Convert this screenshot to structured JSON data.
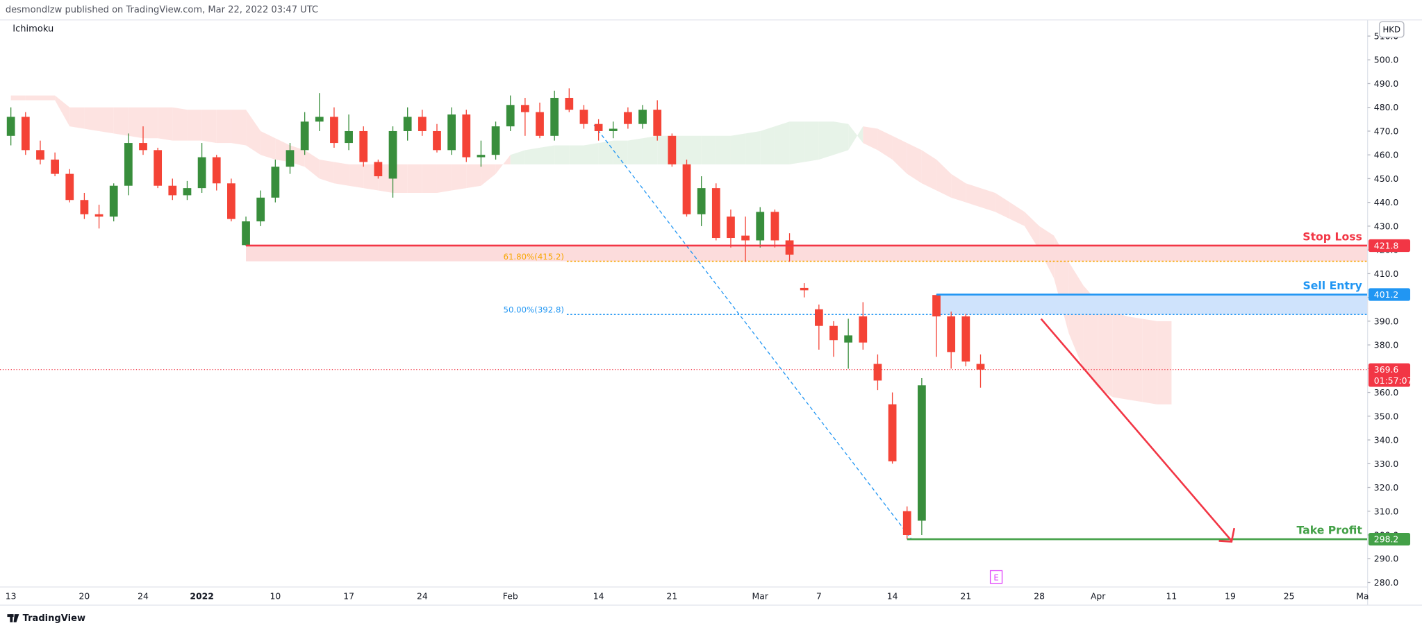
{
  "chart_data": {
    "type": "candlestick",
    "header": "desmondlzw published on TradingView.com, Mar 22, 2022 03:47 UTC",
    "indicator": "Ichimoku",
    "currency": "HKD",
    "event_marker": "E",
    "brand": "TradingView",
    "up_color": "#388e3c",
    "down_color": "#f44336",
    "cloud_up_color": "#e7f3e8",
    "cloud_down_color": "#fde3e1",
    "ylim": [
      278.1,
      516.8
    ],
    "yticks": [
      {
        "value": 280,
        "label": "280.0"
      },
      {
        "value": 290,
        "label": "290.0"
      },
      {
        "value": 300,
        "label": "300.0"
      },
      {
        "value": 310,
        "label": "310.0"
      },
      {
        "value": 320,
        "label": "320.0"
      },
      {
        "value": 330,
        "label": "330.0"
      },
      {
        "value": 340,
        "label": "340.0"
      },
      {
        "value": 350,
        "label": "350.0"
      },
      {
        "value": 360,
        "label": "360.0"
      },
      {
        "value": 370,
        "label": "370.0"
      },
      {
        "value": 380,
        "label": "380.0"
      },
      {
        "value": 390,
        "label": "390.0"
      },
      {
        "value": 400,
        "label": "400.0"
      },
      {
        "value": 410,
        "label": "410.0"
      },
      {
        "value": 420,
        "label": "420.0"
      },
      {
        "value": 430,
        "label": "430.0"
      },
      {
        "value": 440,
        "label": "440.0"
      },
      {
        "value": 450,
        "label": "450.0"
      },
      {
        "value": 460,
        "label": "460.0"
      },
      {
        "value": 470,
        "label": "470.0"
      },
      {
        "value": 480,
        "label": "480.0"
      },
      {
        "value": 490,
        "label": "490.0"
      },
      {
        "value": 500,
        "label": "500.0"
      },
      {
        "value": 510,
        "label": "510.0"
      }
    ],
    "categories": [
      "13",
      null,
      null,
      null,
      null,
      "20",
      null,
      null,
      null,
      "24",
      null,
      null,
      null,
      "2022",
      null,
      null,
      null,
      null,
      "10",
      null,
      null,
      null,
      null,
      "17",
      null,
      null,
      null,
      null,
      "24",
      null,
      null,
      null,
      null,
      null,
      "Feb",
      null,
      null,
      null,
      null,
      null,
      "14",
      null,
      null,
      null,
      null,
      "21",
      null,
      null,
      null,
      null,
      null,
      "Mar",
      null,
      null,
      null,
      "7",
      null,
      null,
      null,
      null,
      "14",
      null,
      null,
      null,
      null,
      "21",
      null,
      null,
      null,
      null,
      "28",
      null,
      null,
      null,
      "Apr",
      null,
      null,
      null,
      null,
      "11",
      null,
      null,
      null,
      "19",
      null,
      null,
      null,
      "25",
      null,
      null,
      null,
      null,
      "Ma"
    ],
    "ohlc": [
      [
        468,
        480,
        464,
        476
      ],
      [
        476,
        478,
        460,
        462
      ],
      [
        462,
        466,
        456,
        458
      ],
      [
        458,
        461,
        451,
        452
      ],
      [
        452,
        454,
        440,
        441
      ],
      [
        441,
        444,
        433,
        435
      ],
      [
        435,
        439,
        429,
        434
      ],
      [
        434,
        448,
        432,
        447
      ],
      [
        447,
        469,
        443,
        465
      ],
      [
        465,
        472,
        460,
        462
      ],
      [
        462,
        463,
        446,
        447
      ],
      [
        447,
        450,
        441,
        443
      ],
      [
        443,
        449,
        441,
        446
      ],
      [
        446,
        465,
        444,
        459
      ],
      [
        459,
        460,
        445,
        448
      ],
      [
        448,
        450,
        432,
        433
      ],
      [
        422,
        434,
        421.8,
        432
      ],
      [
        432,
        445,
        430,
        442
      ],
      [
        442,
        458,
        440,
        455
      ],
      [
        455,
        465,
        452,
        462
      ],
      [
        462,
        478,
        460,
        474
      ],
      [
        474,
        486,
        470,
        476
      ],
      [
        476,
        480,
        463,
        465
      ],
      [
        465,
        477,
        462,
        470
      ],
      [
        470,
        472,
        455,
        457
      ],
      [
        457,
        458,
        450,
        451
      ],
      [
        450,
        472,
        442,
        470
      ],
      [
        470,
        480,
        466,
        476
      ],
      [
        476,
        479,
        468,
        470
      ],
      [
        470,
        473,
        461,
        462
      ],
      [
        462,
        480,
        460,
        477
      ],
      [
        477,
        479,
        457,
        459
      ],
      [
        459,
        466,
        455,
        460
      ],
      [
        460,
        474,
        458,
        472
      ],
      [
        472,
        485,
        470,
        481
      ],
      [
        481,
        484,
        468,
        478
      ],
      [
        478,
        482,
        467,
        468
      ],
      [
        468,
        487,
        466,
        484
      ],
      [
        484,
        488,
        478,
        479
      ],
      [
        479,
        481,
        471,
        473
      ],
      [
        473,
        475,
        466,
        470
      ],
      [
        470,
        474,
        467,
        471
      ],
      [
        478,
        480,
        471,
        473
      ],
      [
        473,
        481,
        471,
        479
      ],
      [
        479,
        483,
        466,
        468
      ],
      [
        468,
        469,
        455,
        456
      ],
      [
        456,
        458,
        434,
        435
      ],
      [
        435,
        451,
        430,
        446
      ],
      [
        446,
        448,
        424,
        425
      ],
      [
        434,
        437,
        421,
        425
      ],
      [
        426,
        434,
        415,
        424
      ],
      [
        424,
        438,
        421,
        436
      ],
      [
        436,
        437,
        421,
        424
      ],
      [
        424,
        427,
        415,
        418
      ],
      [
        404,
        406,
        400,
        403
      ],
      [
        395,
        397,
        378,
        388
      ],
      [
        388,
        390,
        375,
        382
      ],
      [
        381,
        391,
        370,
        384
      ],
      [
        392,
        398,
        378,
        381
      ],
      [
        372,
        376,
        361,
        365
      ],
      [
        355,
        360,
        330,
        331
      ],
      [
        310,
        312,
        298.2,
        300
      ],
      [
        306,
        366,
        300,
        363
      ],
      [
        401,
        401.2,
        375,
        392
      ],
      [
        392,
        394,
        370,
        377
      ],
      [
        392,
        393,
        371,
        373
      ],
      [
        372,
        376,
        362,
        369.6
      ],
      null,
      null,
      null,
      null,
      null,
      null,
      null,
      null,
      null,
      null,
      null,
      null,
      null,
      null,
      null,
      null,
      null,
      null,
      null,
      null,
      null,
      null,
      null,
      null,
      null,
      null
    ],
    "span_a": [
      483,
      483,
      483,
      483,
      472,
      471,
      470,
      469,
      468,
      467,
      467,
      466,
      466,
      466,
      465,
      465,
      464,
      460,
      458,
      457,
      455,
      450,
      448,
      447,
      446,
      445,
      444,
      444,
      444,
      444,
      445,
      446,
      447,
      452,
      460,
      462,
      463,
      464,
      464,
      464,
      465,
      466,
      466,
      467,
      468,
      468,
      468,
      468,
      468,
      468,
      469,
      470,
      472,
      474,
      474,
      474,
      474,
      473,
      465,
      462,
      458,
      452,
      448,
      445,
      442,
      440,
      438,
      436,
      433,
      430,
      420,
      408,
      385,
      370,
      362,
      358,
      357,
      356,
      355,
      355,
      null,
      null,
      null,
      null,
      null,
      null,
      null,
      null,
      null,
      null,
      null,
      null,
      null
    ],
    "span_b": [
      485,
      485,
      485,
      485,
      480,
      480,
      480,
      480,
      480,
      480,
      480,
      480,
      479,
      479,
      479,
      479,
      479,
      470,
      467,
      464,
      462,
      458,
      457,
      456,
      456,
      456,
      456,
      456,
      456,
      456,
      456,
      456,
      456,
      456,
      456,
      456,
      456,
      456,
      456,
      456,
      456,
      456,
      456,
      456,
      456,
      456,
      456,
      456,
      456,
      456,
      456,
      456,
      456,
      456,
      457,
      458,
      460,
      462,
      472,
      471,
      468,
      465,
      462,
      458,
      452,
      448,
      446,
      444,
      440,
      436,
      430,
      426,
      415,
      405,
      398,
      394,
      392,
      391,
      390,
      390,
      null,
      null,
      null,
      null,
      null,
      null,
      null,
      null,
      null,
      null,
      null,
      null,
      null
    ],
    "fib_levels": [
      {
        "label": "61.80%(415.2)",
        "value": 415.2,
        "color": "#f7a600"
      },
      {
        "label": "50.00%(392.8)",
        "value": 392.8,
        "color": "#2196f3"
      }
    ],
    "stop_loss": {
      "label": "Stop Loss",
      "value": 421.8,
      "color": "#f23645"
    },
    "sell_entry": {
      "label": "Sell Entry",
      "value": 401.2,
      "color": "#2196f3"
    },
    "take_profit": {
      "label": "Take Profit",
      "value": 298.2,
      "color": "#43a047"
    },
    "last_price": {
      "value": 369.6,
      "countdown": "01:57:07",
      "color": "#f23645"
    }
  }
}
